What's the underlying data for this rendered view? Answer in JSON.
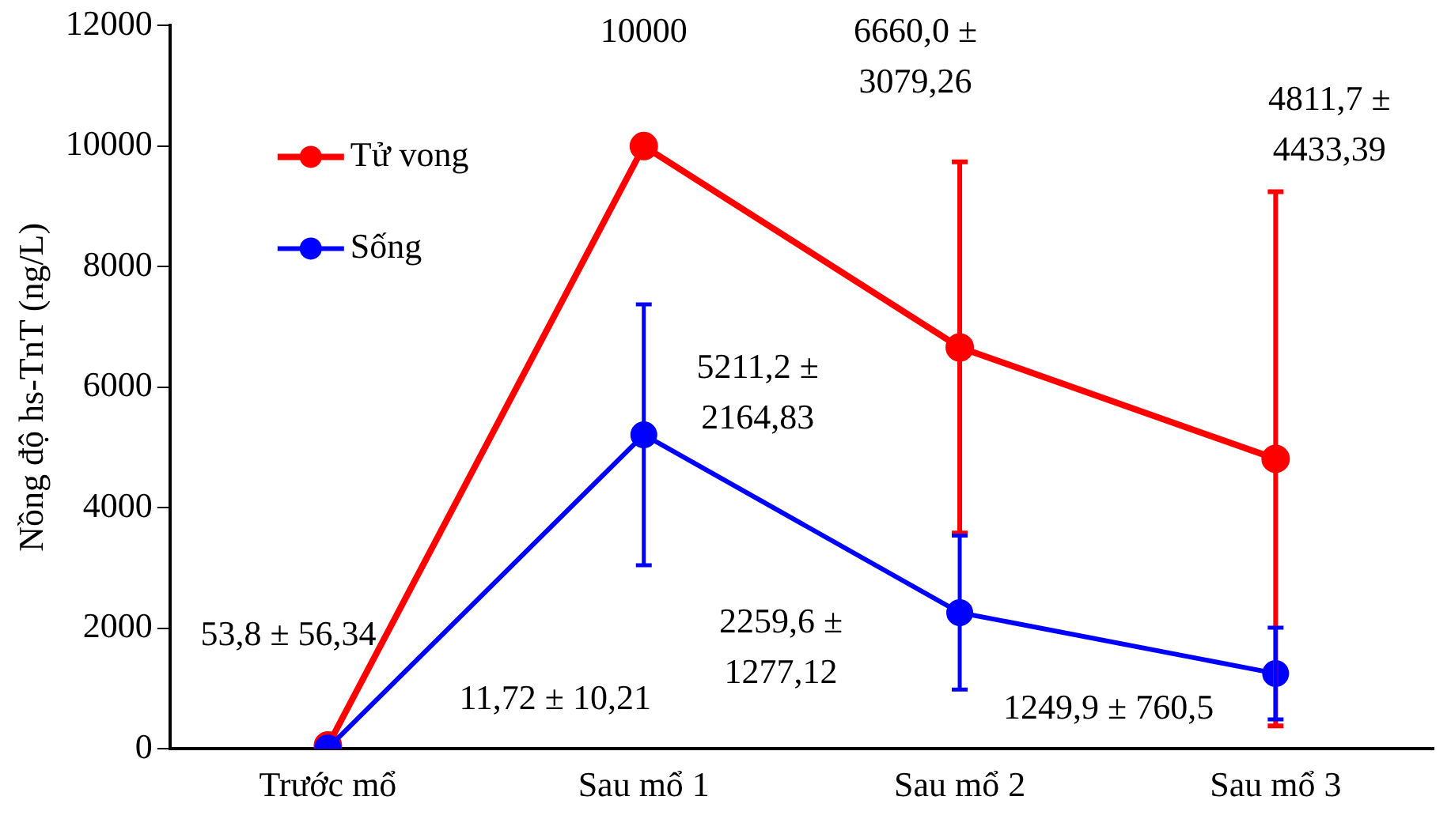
{
  "chart_data": {
    "type": "line",
    "ylabel": "Nồng độ hs-TnT (ng/L)",
    "categories": [
      "Trước mổ",
      "Sau mổ 1",
      "Sau mổ 2",
      "Sau mổ 3"
    ],
    "series": [
      {
        "name": "Tử vong",
        "color": "#ff0000",
        "values": [
          53.8,
          10000,
          6660.0,
          4811.7
        ],
        "errors": [
          null,
          null,
          3079.26,
          4433.39
        ]
      },
      {
        "name": "Sống",
        "color": "#0000ff",
        "values": [
          11.72,
          5211.2,
          2259.6,
          1249.9
        ],
        "errors": [
          null,
          2164.83,
          1277.12,
          760.5
        ]
      }
    ],
    "ylim": [
      0,
      12000
    ],
    "yticks": [
      0,
      2000,
      4000,
      6000,
      8000,
      10000,
      12000
    ],
    "grid": false,
    "legend": "top left",
    "marker": "circle",
    "annotations": [
      "10000",
      "6660,0 ±\n3079,26",
      "4811,7 ±\n4433,39",
      "5211,2 ±\n2164,83",
      "53,8 ± 56,34",
      "11,72 ± 10,21",
      "2259,6 ±\n1277,12",
      "1249,9 ± 760,5"
    ]
  }
}
